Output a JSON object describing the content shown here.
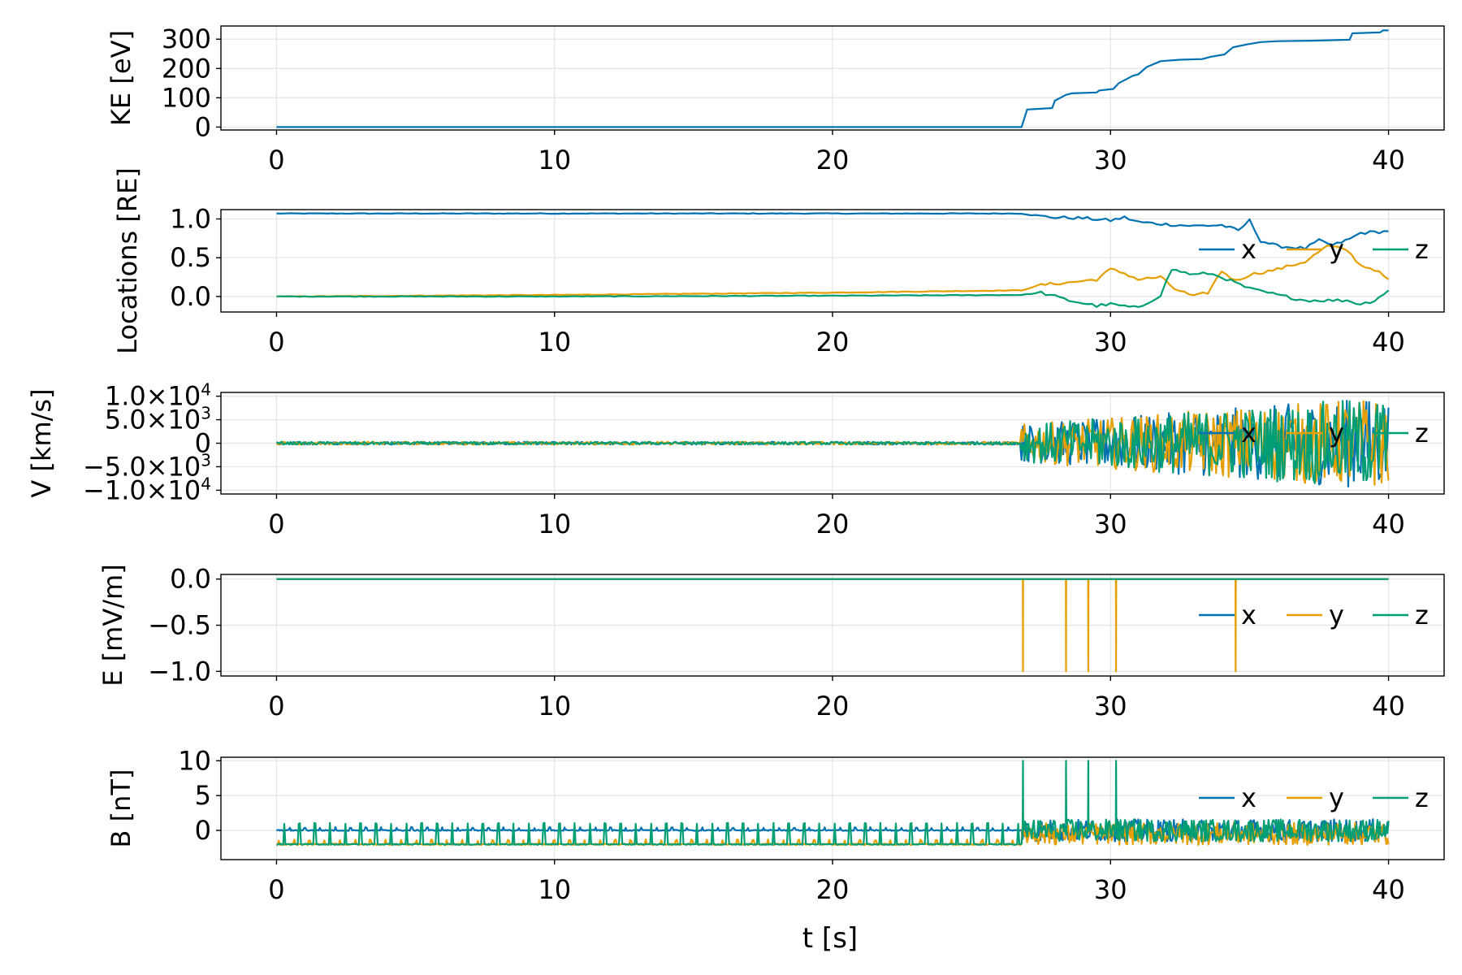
{
  "colors": {
    "x": "#0072b2",
    "y": "#e69f00",
    "z": "#009e73"
  },
  "chart_data": [
    {
      "type": "line",
      "ylabel": "KE [eV]",
      "xlim": [
        -2,
        42
      ],
      "ylim": [
        -10,
        345
      ],
      "x_ticks": [
        0,
        10,
        20,
        30,
        40
      ],
      "x_tick_labels": [
        "0",
        "10",
        "20",
        "30",
        "40"
      ],
      "y_ticks": [
        0,
        100,
        200,
        300
      ],
      "y_tick_labels": [
        "0",
        "100",
        "200",
        "300"
      ],
      "legend": null,
      "series": [
        {
          "name": "KE",
          "color_key": "x",
          "points": [
            [
              0,
              0
            ],
            [
              26.8,
              0
            ],
            [
              27.0,
              60
            ],
            [
              27.9,
              65
            ],
            [
              28.0,
              90
            ],
            [
              28.4,
              110
            ],
            [
              28.6,
              115
            ],
            [
              29.5,
              118
            ],
            [
              29.6,
              125
            ],
            [
              30.1,
              130
            ],
            [
              30.3,
              150
            ],
            [
              30.8,
              175
            ],
            [
              31.0,
              180
            ],
            [
              31.3,
              205
            ],
            [
              31.8,
              225
            ],
            [
              32.5,
              230
            ],
            [
              33.3,
              232
            ],
            [
              33.6,
              240
            ],
            [
              34.1,
              248
            ],
            [
              34.4,
              272
            ],
            [
              34.9,
              282
            ],
            [
              35.4,
              290
            ],
            [
              36.0,
              293
            ],
            [
              37.4,
              295
            ],
            [
              38.6,
              298
            ],
            [
              38.7,
              320
            ],
            [
              39.7,
              323
            ],
            [
              39.8,
              330
            ],
            [
              40,
              330
            ]
          ]
        }
      ]
    },
    {
      "type": "line",
      "ylabel": "Locations [RE]",
      "xlim": [
        -2,
        42
      ],
      "ylim": [
        -0.2,
        1.12
      ],
      "x_ticks": [
        0,
        10,
        20,
        30,
        40
      ],
      "x_tick_labels": [
        "0",
        "10",
        "20",
        "30",
        "40"
      ],
      "y_ticks": [
        0.0,
        0.5,
        1.0
      ],
      "y_tick_labels": [
        "0.0",
        "0.5",
        "1.0"
      ],
      "legend": [
        "x",
        "y",
        "z"
      ],
      "series": [
        {
          "name": "x",
          "color_key": "x",
          "points": [
            [
              0,
              1.07
            ],
            [
              26.8,
              1.07
            ],
            [
              27.3,
              1.04
            ],
            [
              28,
              1.02
            ],
            [
              29,
              1.01
            ],
            [
              30,
              0.98
            ],
            [
              30.5,
              1.02
            ],
            [
              31,
              0.96
            ],
            [
              32,
              0.93
            ],
            [
              33,
              0.91
            ],
            [
              34,
              0.92
            ],
            [
              34.6,
              0.85
            ],
            [
              35,
              0.98
            ],
            [
              35.4,
              0.72
            ],
            [
              36,
              0.65
            ],
            [
              37,
              0.62
            ],
            [
              37.5,
              0.72
            ],
            [
              38,
              0.66
            ],
            [
              38.6,
              0.74
            ],
            [
              39,
              0.82
            ],
            [
              40,
              0.84
            ]
          ]
        },
        {
          "name": "y",
          "color_key": "y",
          "points": [
            [
              0,
              0.0
            ],
            [
              10,
              0.02
            ],
            [
              20,
              0.05
            ],
            [
              26.8,
              0.08
            ],
            [
              27.5,
              0.15
            ],
            [
              28.5,
              0.18
            ],
            [
              29.5,
              0.22
            ],
            [
              30,
              0.35
            ],
            [
              30.5,
              0.3
            ],
            [
              31,
              0.22
            ],
            [
              31.8,
              0.25
            ],
            [
              32.3,
              0.1
            ],
            [
              33,
              0.0
            ],
            [
              33.5,
              0.05
            ],
            [
              34,
              0.33
            ],
            [
              34.5,
              0.2
            ],
            [
              35,
              0.28
            ],
            [
              36,
              0.35
            ],
            [
              37,
              0.45
            ],
            [
              37.8,
              0.65
            ],
            [
              38.5,
              0.6
            ],
            [
              39,
              0.4
            ],
            [
              39.5,
              0.35
            ],
            [
              40,
              0.22
            ]
          ]
        },
        {
          "name": "z",
          "color_key": "z",
          "points": [
            [
              0,
              0.0
            ],
            [
              10,
              0.0
            ],
            [
              20,
              0.01
            ],
            [
              26.8,
              0.02
            ],
            [
              27.5,
              0.05
            ],
            [
              28.5,
              -0.05
            ],
            [
              29.5,
              -0.12
            ],
            [
              30,
              -0.1
            ],
            [
              31,
              -0.15
            ],
            [
              31.8,
              0.02
            ],
            [
              32.2,
              0.35
            ],
            [
              33,
              0.28
            ],
            [
              33.5,
              0.3
            ],
            [
              34,
              0.25
            ],
            [
              35,
              0.1
            ],
            [
              36,
              0.02
            ],
            [
              37,
              -0.05
            ],
            [
              38,
              -0.05
            ],
            [
              38.5,
              -0.05
            ],
            [
              39,
              -0.1
            ],
            [
              39.5,
              -0.05
            ],
            [
              40,
              0.08
            ]
          ]
        }
      ]
    },
    {
      "type": "line",
      "ylabel": "V [km/s]",
      "xlim": [
        -2,
        42
      ],
      "ylim": [
        -10800,
        10800
      ],
      "x_ticks": [
        0,
        10,
        20,
        30,
        40
      ],
      "x_tick_labels": [
        "0",
        "10",
        "20",
        "30",
        "40"
      ],
      "y_ticks": [
        -10000,
        -5000,
        0,
        5000,
        10000
      ],
      "y_tick_labels": [
        [
          "−1.0×10",
          "4"
        ],
        [
          "−5.0×10",
          "3"
        ],
        [
          "0",
          ""
        ],
        [
          "5.0×10",
          "3"
        ],
        [
          "1.0×10",
          "4"
        ]
      ],
      "legend": [
        "x",
        "y",
        "z"
      ],
      "oscillation": {
        "quiet_until": 26.8,
        "quiet_amplitude": 300,
        "active_amplitude_start": 4000,
        "active_amplitude_end": 10000,
        "end": 40
      }
    },
    {
      "type": "line",
      "ylabel": "E [mV/m]",
      "xlim": [
        -2,
        42
      ],
      "ylim": [
        -1.05,
        0.05
      ],
      "x_ticks": [
        0,
        10,
        20,
        30,
        40
      ],
      "x_tick_labels": [
        "0",
        "10",
        "20",
        "30",
        "40"
      ],
      "y_ticks": [
        -1.0,
        -0.5,
        0.0
      ],
      "y_tick_labels": [
        "−1.0",
        "−0.5",
        "0.0"
      ],
      "legend": [
        "x",
        "y",
        "z"
      ],
      "baseline": 0.0,
      "spikes": [
        {
          "t": 26.85,
          "value": -1.0,
          "color_key": "y"
        },
        {
          "t": 28.4,
          "value": -1.0,
          "color_key": "y"
        },
        {
          "t": 29.2,
          "value": -1.0,
          "color_key": "y"
        },
        {
          "t": 30.2,
          "value": -1.0,
          "color_key": "y"
        },
        {
          "t": 34.5,
          "value": -1.0,
          "color_key": "y"
        }
      ]
    },
    {
      "type": "line",
      "ylabel": "B [nT]",
      "xlim": [
        -2,
        42
      ],
      "ylim": [
        -4.2,
        10.5
      ],
      "x_ticks": [
        0,
        10,
        20,
        30,
        40
      ],
      "x_tick_labels": [
        "0",
        "10",
        "20",
        "30",
        "40"
      ],
      "y_ticks": [
        0,
        5,
        10
      ],
      "y_tick_labels": [
        "0",
        "5",
        "10"
      ],
      "xlabel": "t [s]",
      "legend": [
        "x",
        "y",
        "z"
      ],
      "quiet": {
        "until": 26.8,
        "x_level": 0.0,
        "y_level": -2.0,
        "z_level": -2.0,
        "z_spike": 1.0,
        "period": 0.55
      },
      "active": {
        "amplitude": 1.6,
        "end": 40
      },
      "spikes": [
        {
          "t": 26.85,
          "value": 10,
          "color_key": "z"
        },
        {
          "t": 28.4,
          "value": 10,
          "color_key": "z"
        },
        {
          "t": 29.2,
          "value": 10,
          "color_key": "z"
        },
        {
          "t": 30.2,
          "value": 10,
          "color_key": "z"
        }
      ]
    }
  ]
}
